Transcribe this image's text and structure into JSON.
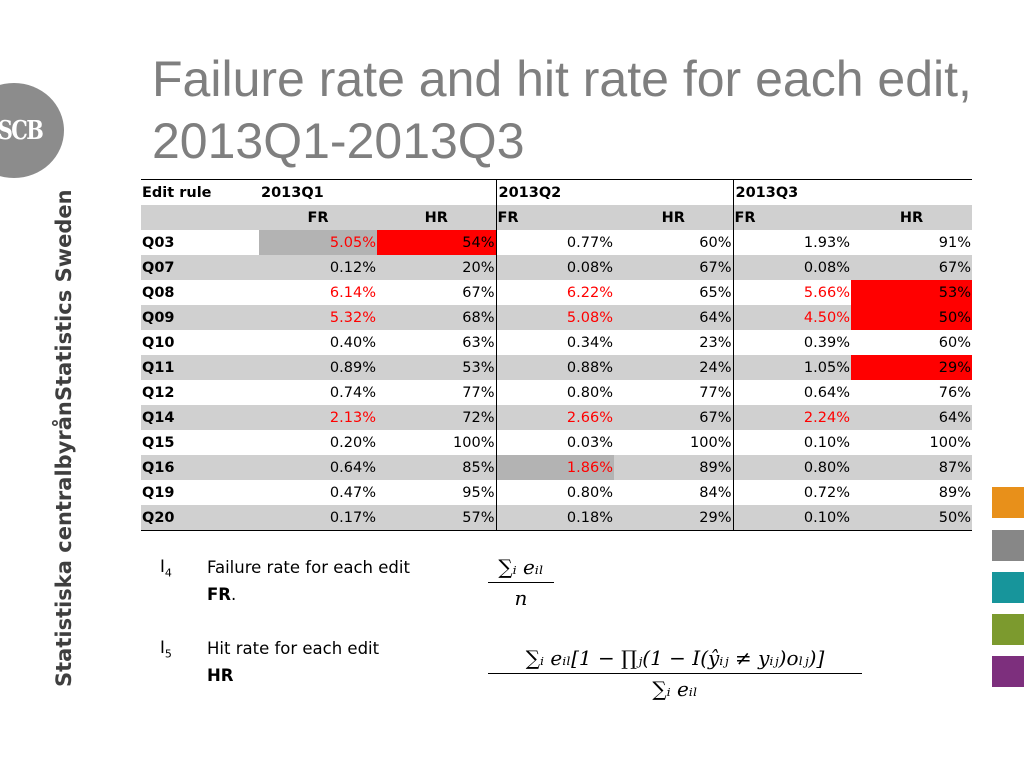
{
  "title": "Failure rate and hit rate for each edit, 2013Q1-2013Q3",
  "logo": {
    "text": "SCB"
  },
  "vertical_labels": {
    "english": "Statistics Sweden",
    "swedish": "Statistiska centralbyrån"
  },
  "table": {
    "header": {
      "rule": "Edit rule",
      "q1": "2013Q1",
      "q2": "2013Q2",
      "q3": "2013Q3",
      "fr": "FR",
      "hr": "HR"
    },
    "rows": [
      {
        "rule": "Q03",
        "q1fr": "5.05%",
        "q1hr": "54%",
        "q2fr": "0.77%",
        "q2hr": "60%",
        "q3fr": "1.93%",
        "q3hr": "91%"
      },
      {
        "rule": "Q07",
        "q1fr": "0.12%",
        "q1hr": "20%",
        "q2fr": "0.08%",
        "q2hr": "67%",
        "q3fr": "0.08%",
        "q3hr": "67%"
      },
      {
        "rule": "Q08",
        "q1fr": "6.14%",
        "q1hr": "67%",
        "q2fr": "6.22%",
        "q2hr": "65%",
        "q3fr": "5.66%",
        "q3hr": "53%"
      },
      {
        "rule": "Q09",
        "q1fr": "5.32%",
        "q1hr": "68%",
        "q2fr": "5.08%",
        "q2hr": "64%",
        "q3fr": "4.50%",
        "q3hr": "50%"
      },
      {
        "rule": "Q10",
        "q1fr": "0.40%",
        "q1hr": "63%",
        "q2fr": "0.34%",
        "q2hr": "23%",
        "q3fr": "0.39%",
        "q3hr": "60%"
      },
      {
        "rule": "Q11",
        "q1fr": "0.89%",
        "q1hr": "53%",
        "q2fr": "0.88%",
        "q2hr": "24%",
        "q3fr": "1.05%",
        "q3hr": "29%"
      },
      {
        "rule": "Q12",
        "q1fr": "0.74%",
        "q1hr": "77%",
        "q2fr": "0.80%",
        "q2hr": "77%",
        "q3fr": "0.64%",
        "q3hr": "76%"
      },
      {
        "rule": "Q14",
        "q1fr": "2.13%",
        "q1hr": "72%",
        "q2fr": "2.66%",
        "q2hr": "67%",
        "q3fr": "2.24%",
        "q3hr": "64%"
      },
      {
        "rule": "Q15",
        "q1fr": "0.20%",
        "q1hr": "100%",
        "q2fr": "0.03%",
        "q2hr": "100%",
        "q3fr": "0.10%",
        "q3hr": "100%"
      },
      {
        "rule": "Q16",
        "q1fr": "0.64%",
        "q1hr": "85%",
        "q2fr": "1.86%",
        "q2hr": "89%",
        "q3fr": "0.80%",
        "q3hr": "87%"
      },
      {
        "rule": "Q19",
        "q1fr": "0.47%",
        "q1hr": "95%",
        "q2fr": "0.80%",
        "q2hr": "84%",
        "q3fr": "0.72%",
        "q3hr": "89%"
      },
      {
        "rule": "Q20",
        "q1fr": "0.17%",
        "q1hr": "57%",
        "q2fr": "0.18%",
        "q2hr": "29%",
        "q3fr": "0.10%",
        "q3hr": "50%"
      }
    ]
  },
  "indicators": {
    "i4": {
      "symbol": "I",
      "sub": "4",
      "line1": "Failure rate for each edit",
      "short": "FR",
      "dot": "."
    },
    "i5": {
      "symbol": "I",
      "sub": "5",
      "line1": "Hit rate for each edit",
      "short": "HR"
    }
  },
  "formulas": {
    "fr": {
      "numerator": "∑ᵢ eᵢₗ",
      "denominator": "n"
    },
    "hr": {
      "numerator": "∑ᵢ eᵢₗ[1 − ∏ⱼ(1 − I(ŷᵢⱼ ≠ yᵢⱼ)oₗⱼ)]",
      "denominator": "∑ᵢ eᵢₗ"
    }
  },
  "colors": {
    "title": "#7f7f7f",
    "highlight_red": "#ff0000",
    "row_shade": "#d0d0d0",
    "swatches": [
      "#e8901a",
      "#878787",
      "#17959b",
      "#7c9a2e",
      "#7d2f7d"
    ]
  }
}
